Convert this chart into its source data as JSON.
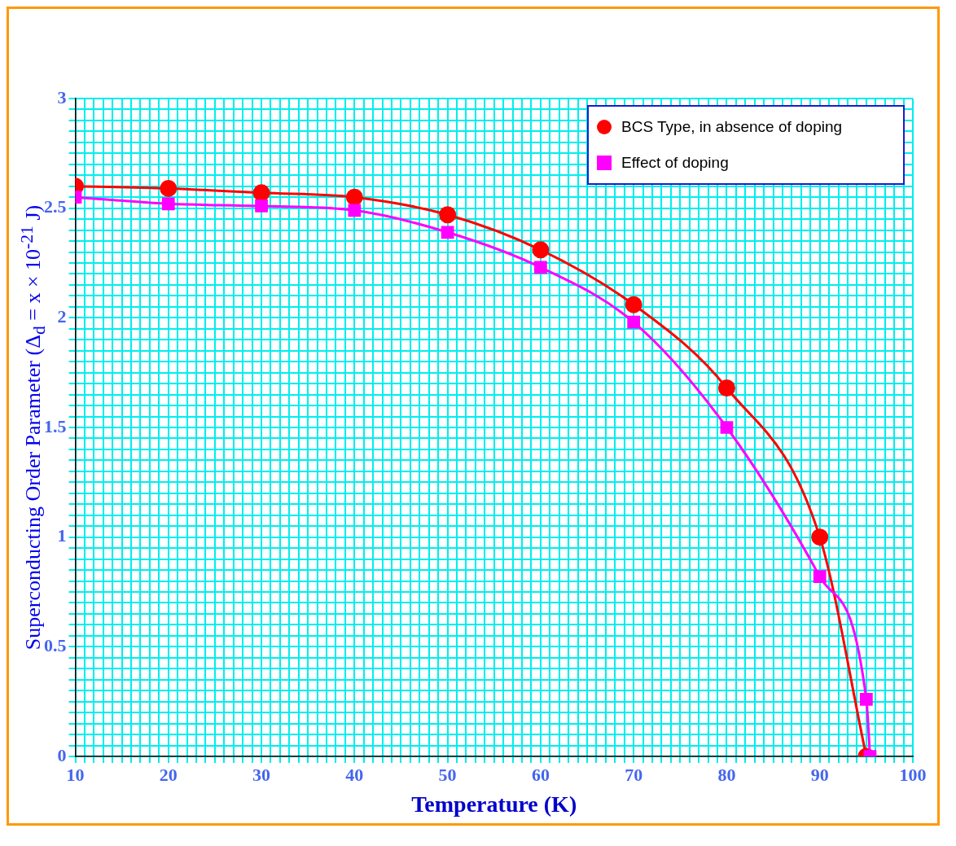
{
  "chart_data": {
    "type": "line",
    "xlabel": "Temperature (K)",
    "ylabel": "Superconducting Order Parameter (Δ$_{d}$ = x × 10$^{-21}$ J)",
    "legend": "top right",
    "grid": true,
    "xlim": [
      10,
      100
    ],
    "ylim": [
      0,
      3
    ],
    "xticks": [
      10,
      {
        "value": 11,
        "label": null
      },
      {
        "value": 12,
        "label": null
      },
      {
        "value": 13,
        "label": null
      },
      {
        "value": 14,
        "label": null
      },
      {
        "value": 15,
        "label": null
      },
      {
        "value": 16,
        "label": null
      },
      {
        "value": 17,
        "label": null
      },
      {
        "value": 18,
        "label": null
      },
      {
        "value": 19,
        "label": null
      },
      20,
      {
        "value": 21,
        "label": null
      },
      {
        "value": 22,
        "label": null
      },
      {
        "value": 23,
        "label": null
      },
      {
        "value": 24,
        "label": null
      },
      {
        "value": 25,
        "label": null
      },
      {
        "value": 26,
        "label": null
      },
      {
        "value": 27,
        "label": null
      },
      {
        "value": 28,
        "label": null
      },
      {
        "value": 29,
        "label": null
      },
      30,
      {
        "value": 31,
        "label": null
      },
      {
        "value": 32,
        "label": null
      },
      {
        "value": 33,
        "label": null
      },
      {
        "value": 34,
        "label": null
      },
      {
        "value": 35,
        "label": null
      },
      {
        "value": 36,
        "label": null
      },
      {
        "value": 37,
        "label": null
      },
      {
        "value": 38,
        "label": null
      },
      {
        "value": 39,
        "label": null
      },
      40,
      {
        "value": 41,
        "label": null
      },
      {
        "value": 42,
        "label": null
      },
      {
        "value": 43,
        "label": null
      },
      {
        "value": 44,
        "label": null
      },
      {
        "value": 45,
        "label": null
      },
      {
        "value": 46,
        "label": null
      },
      {
        "value": 47,
        "label": null
      },
      {
        "value": 48,
        "label": null
      },
      {
        "value": 49,
        "label": null
      },
      50,
      {
        "value": 51,
        "label": null
      },
      {
        "value": 52,
        "label": null
      },
      {
        "value": 53,
        "label": null
      },
      {
        "value": 54,
        "label": null
      },
      {
        "value": 55,
        "label": null
      },
      {
        "value": 56,
        "label": null
      },
      {
        "value": 57,
        "label": null
      },
      {
        "value": 58,
        "label": null
      },
      {
        "value": 59,
        "label": null
      },
      60,
      {
        "value": 61,
        "label": null
      },
      {
        "value": 62,
        "label": null
      },
      {
        "value": 63,
        "label": null
      },
      {
        "value": 64,
        "label": null
      },
      {
        "value": 65,
        "label": null
      },
      {
        "value": 66,
        "label": null
      },
      {
        "value": 67,
        "label": null
      },
      {
        "value": 68,
        "label": null
      },
      {
        "value": 69,
        "label": null
      },
      70,
      {
        "value": 71,
        "label": null
      },
      {
        "value": 72,
        "label": null
      },
      {
        "value": 73,
        "label": null
      },
      {
        "value": 74,
        "label": null
      },
      {
        "value": 75,
        "label": null
      },
      {
        "value": 76,
        "label": null
      },
      {
        "value": 77,
        "label": null
      },
      {
        "value": 78,
        "label": null
      },
      {
        "value": 79,
        "label": null
      },
      80,
      {
        "value": 81,
        "label": null
      },
      {
        "value": 82,
        "label": null
      },
      {
        "value": 83,
        "label": null
      },
      {
        "value": 84,
        "label": null
      },
      {
        "value": 85,
        "label": null
      },
      {
        "value": 86,
        "label": null
      },
      {
        "value": 87,
        "label": null
      },
      {
        "value": 88,
        "label": null
      },
      {
        "value": 89,
        "label": null
      },
      90,
      {
        "value": 91,
        "label": null
      },
      {
        "value": 92,
        "label": null
      },
      {
        "value": 93,
        "label": null
      },
      {
        "value": 94,
        "label": null
      },
      {
        "value": 95,
        "label": null
      },
      {
        "value": 96,
        "label": null
      },
      {
        "value": 97,
        "label": null
      },
      {
        "value": 98,
        "label": null
      },
      {
        "value": 99,
        "label": null
      },
      100
    ],
    "yticks": [
      0,
      {
        "value": 0.05,
        "label": null
      },
      {
        "value": 0.1,
        "label": null
      },
      {
        "value": 0.15,
        "label": null
      },
      {
        "value": 0.2,
        "label": null
      },
      {
        "value": 0.25,
        "label": null
      },
      {
        "value": 0.3,
        "label": null
      },
      {
        "value": 0.35,
        "label": null
      },
      {
        "value": 0.4,
        "label": null
      },
      {
        "value": 0.45,
        "label": null
      },
      0.5,
      {
        "value": 0.55,
        "label": null
      },
      {
        "value": 0.6,
        "label": null
      },
      {
        "value": 0.65,
        "label": null
      },
      {
        "value": 0.7,
        "label": null
      },
      {
        "value": 0.75,
        "label": null
      },
      {
        "value": 0.8,
        "label": null
      },
      {
        "value": 0.85,
        "label": null
      },
      {
        "value": 0.9,
        "label": null
      },
      {
        "value": 0.95,
        "label": null
      },
      1,
      {
        "value": 1.05,
        "label": null
      },
      {
        "value": 1.1,
        "label": null
      },
      {
        "value": 1.15,
        "label": null
      },
      {
        "value": 1.2,
        "label": null
      },
      {
        "value": 1.25,
        "label": null
      },
      {
        "value": 1.3,
        "label": null
      },
      {
        "value": 1.35,
        "label": null
      },
      {
        "value": 1.4,
        "label": null
      },
      {
        "value": 1.45,
        "label": null
      },
      1.5,
      {
        "value": 1.55,
        "label": null
      },
      {
        "value": 1.6,
        "label": null
      },
      {
        "value": 1.65,
        "label": null
      },
      {
        "value": 1.7,
        "label": null
      },
      {
        "value": 1.75,
        "label": null
      },
      {
        "value": 1.8,
        "label": null
      },
      {
        "value": 1.85,
        "label": null
      },
      {
        "value": 1.9,
        "label": null
      },
      {
        "value": 1.95,
        "label": null
      },
      2,
      {
        "value": 2.05,
        "label": null
      },
      {
        "value": 2.1,
        "label": null
      },
      {
        "value": 2.15,
        "label": null
      },
      {
        "value": 2.2,
        "label": null
      },
      {
        "value": 2.25,
        "label": null
      },
      {
        "value": 2.3,
        "label": null
      },
      {
        "value": 2.35,
        "label": null
      },
      {
        "value": 2.4,
        "label": null
      },
      {
        "value": 2.45,
        "label": null
      },
      2.5,
      {
        "value": 2.55,
        "label": null
      },
      {
        "value": 2.6,
        "label": null
      },
      {
        "value": 2.65,
        "label": null
      },
      {
        "value": 2.7,
        "label": null
      },
      {
        "value": 2.75,
        "label": null
      },
      {
        "value": 2.8,
        "label": null
      },
      {
        "value": 2.85,
        "label": null
      },
      {
        "value": 2.9,
        "label": null
      },
      {
        "value": 2.95,
        "label": null
      },
      3
    ],
    "series": [
      {
        "name": "BCS Type, in absence of doping",
        "color": "#ff0000",
        "marker": "circle",
        "x": [
          10,
          20,
          30,
          40,
          50,
          60,
          70,
          80,
          90,
          95
        ],
        "values": [
          2.6,
          2.59,
          2.57,
          2.55,
          2.47,
          2.31,
          2.06,
          1.68,
          1.0,
          0
        ]
      },
      {
        "name": "Effect of doping",
        "color": "#ff00ff",
        "marker": "square",
        "x": [
          10,
          20,
          30,
          40,
          50,
          60,
          70,
          80,
          90,
          95,
          95.4
        ],
        "values": [
          2.55,
          2.52,
          2.51,
          2.49,
          2.39,
          2.23,
          1.98,
          1.5,
          0.82,
          0.26,
          0
        ]
      }
    ]
  }
}
